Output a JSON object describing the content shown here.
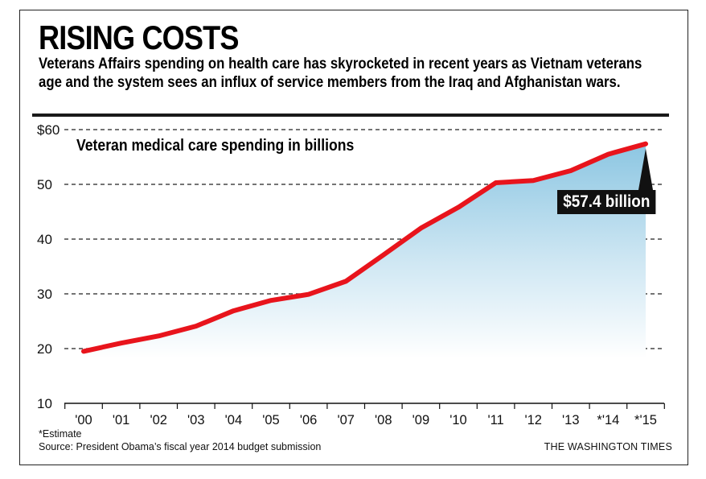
{
  "header": {
    "title": "RISING COSTS",
    "subtitle": "Veterans Affairs spending on health care has skyrocketed in recent years as Vietnam veterans age and the system sees an influx of service members from the Iraq and Afghanistan wars."
  },
  "footer": {
    "footnote": "*Estimate",
    "source": "Source: President Obama’s fiscal year 2014 budget submission",
    "credit": "THE WASHINGTON TIMES"
  },
  "colors": {
    "line": "#e8141c",
    "area_top": "#8cc6e2",
    "area_bottom": "#ffffff",
    "grid": "#222222",
    "callout_bg": "#111111"
  },
  "chart_data": {
    "type": "area",
    "ylabel": "Veteran medical care spending in billions",
    "xlabel": "",
    "categories": [
      "'00",
      "'01",
      "'02",
      "'03",
      "'04",
      "'05",
      "'06",
      "'07",
      "'08",
      "'09",
      "'10",
      "'11",
      "'12",
      "'13",
      "*'14",
      "*'15"
    ],
    "series": [
      {
        "values": [
          19.5,
          21.0,
          22.3,
          24.1,
          26.9,
          28.8,
          29.9,
          32.3,
          37.1,
          42.0,
          45.8,
          50.3,
          50.7,
          52.5,
          55.5,
          57.4
        ]
      }
    ],
    "y_ticks": [
      "$60",
      "50",
      "40",
      "30",
      "20",
      "10"
    ],
    "y_tick_values": [
      60,
      50,
      40,
      30,
      20,
      10
    ],
    "ylim": [
      10,
      60
    ],
    "grid": "horizontal dashed",
    "annotations": [
      {
        "label": "$57.4 billion",
        "category": "*'15",
        "value": 57.4
      }
    ]
  }
}
